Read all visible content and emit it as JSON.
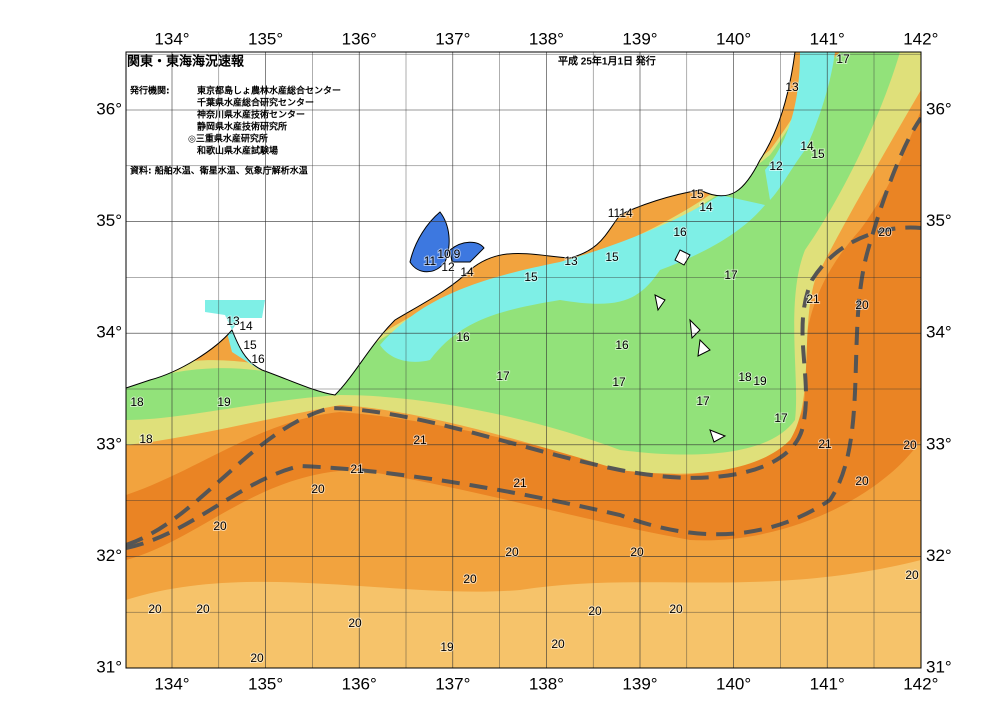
{
  "map": {
    "title": "関東・東海海況速報",
    "issue_date": "平成 25年1月1日 発行",
    "issuer_label": "発行機関:",
    "issuers": [
      "東京都島しょ農林水産総合センター",
      "千葉県水産総合研究センター",
      "神奈川県水産技術センター",
      "静岡県水産技術研究所",
      "◎三重県水産研究所",
      "和歌山県水産試験場"
    ],
    "source": "資料: 船舶水温、衛星水温、気象庁解析水温",
    "lon_ticks": [
      {
        "value": 134,
        "label": "134°"
      },
      {
        "value": 135,
        "label": "135°"
      },
      {
        "value": 136,
        "label": "136°"
      },
      {
        "value": 137,
        "label": "137°"
      },
      {
        "value": 138,
        "label": "138°"
      },
      {
        "value": 139,
        "label": "139°"
      },
      {
        "value": 140,
        "label": "140°"
      },
      {
        "value": 141,
        "label": "141°"
      },
      {
        "value": 142,
        "label": "142°"
      }
    ],
    "lat_ticks": [
      {
        "value": 31,
        "label": "31°"
      },
      {
        "value": 32,
        "label": "32°"
      },
      {
        "value": 33,
        "label": "33°"
      },
      {
        "value": 34,
        "label": "34°"
      },
      {
        "value": 35,
        "label": "35°"
      },
      {
        "value": 36,
        "label": "36°"
      }
    ],
    "contour_labels": [
      17,
      13,
      14,
      15,
      12,
      15,
      14,
      11,
      14,
      16,
      20,
      13,
      15,
      11,
      10,
      9,
      12,
      14,
      15,
      17,
      21,
      20,
      13,
      14,
      15,
      16,
      16,
      16,
      17,
      17,
      18,
      19,
      18,
      19,
      17,
      17,
      18,
      21,
      21,
      20,
      21,
      21,
      20,
      20,
      20,
      20,
      20,
      20,
      20,
      20,
      20,
      20,
      20,
      20,
      19,
      20,
      20
    ]
  }
}
